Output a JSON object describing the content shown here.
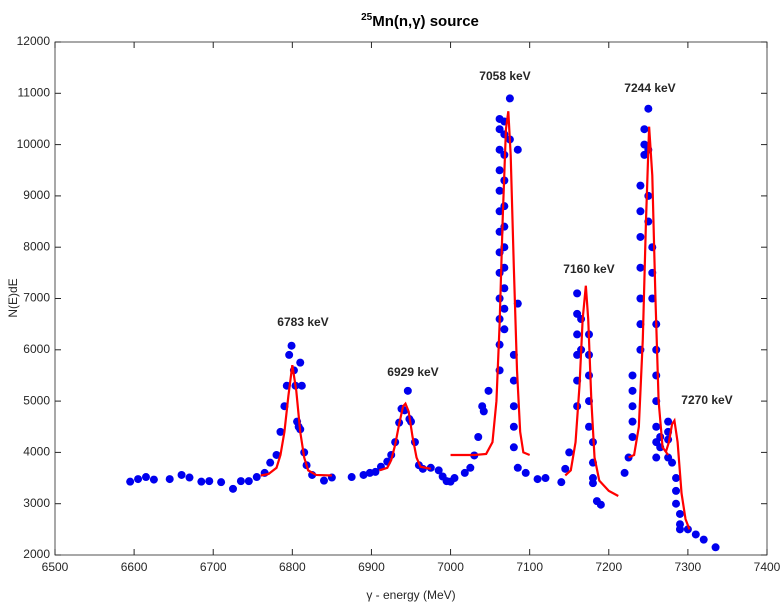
{
  "chart_data": {
    "type": "scatter",
    "title_superscript": "25",
    "title": "Mn(n,γ) source",
    "xlabel": "γ - energy (MeV)",
    "ylabel": "N(E)dE",
    "xlim": [
      6500,
      7400
    ],
    "xticks": [
      6500,
      6600,
      6700,
      6800,
      6900,
      7000,
      7100,
      7200,
      7300,
      7400
    ],
    "ylim": [
      2000,
      12000
    ],
    "yticks": [
      2000,
      3000,
      4000,
      5000,
      6000,
      7000,
      8000,
      9000,
      10000,
      11000,
      12000
    ],
    "grid": false,
    "annotations": [
      "6783 keV",
      "6929 keV",
      "7058 keV",
      "7160 keV",
      "7244 keV",
      "7270 keV"
    ],
    "annotation_color": "#8b3a8f",
    "series": [
      {
        "mode": "markers",
        "color": "#0000ee",
        "x": [
          6595,
          6605,
          6615,
          6625,
          6645,
          6660,
          6670,
          6685,
          6695,
          6710,
          6725,
          6735,
          6745,
          6755,
          6765,
          6772,
          6780,
          6785,
          6790,
          6793,
          6796,
          6799,
          6802,
          6804,
          6806,
          6808,
          6810,
          6810,
          6812,
          6815,
          6818,
          6825,
          6840,
          6850,
          6875,
          6890,
          6898,
          6905,
          6912,
          6920,
          6925,
          6930,
          6935,
          6938,
          6942,
          6946,
          6948,
          6950,
          6955,
          6960,
          6965,
          6975,
          6985,
          6990,
          6995,
          7000,
          7005,
          7018,
          7025,
          7030,
          7035,
          7040,
          7042,
          7048,
          7062,
          7062,
          7062,
          7062,
          7062,
          7062,
          7062,
          7062,
          7062,
          7062,
          7062,
          7062,
          7062,
          7068,
          7068,
          7068,
          7068,
          7068,
          7068,
          7068,
          7068,
          7068,
          7068,
          7068,
          7075,
          7075,
          7080,
          7080,
          7080,
          7080,
          7080,
          7085,
          7085,
          7085,
          7095,
          7110,
          7120,
          7140,
          7145,
          7150,
          7160,
          7160,
          7160,
          7160,
          7160,
          7160,
          7165,
          7165,
          7175,
          7175,
          7175,
          7175,
          7175,
          7180,
          7180,
          7180,
          7180,
          7185,
          7190,
          7220,
          7225,
          7230,
          7230,
          7230,
          7230,
          7230,
          7240,
          7240,
          7240,
          7240,
          7240,
          7240,
          7240,
          7245,
          7245,
          7245,
          7250,
          7250,
          7250,
          7250,
          7255,
          7255,
          7255,
          7260,
          7260,
          7260,
          7260,
          7260,
          7260,
          7260,
          7265,
          7265,
          7275,
          7275,
          7275,
          7275,
          7280,
          7285,
          7285,
          7285,
          7290,
          7290,
          7290,
          7300,
          7310,
          7320,
          7335
        ],
        "values": [
          3430,
          3480,
          3520,
          3470,
          3480,
          3560,
          3510,
          3430,
          3440,
          3420,
          3290,
          3440,
          3440,
          3520,
          3600,
          3800,
          3950,
          4400,
          4900,
          5300,
          5900,
          6080,
          5600,
          5300,
          4600,
          4500,
          4450,
          5750,
          5300,
          4000,
          3750,
          3560,
          3450,
          3510,
          3520,
          3560,
          3600,
          3620,
          3720,
          3820,
          3950,
          4200,
          4580,
          4850,
          4820,
          5200,
          4650,
          4600,
          4200,
          3750,
          3680,
          3700,
          3650,
          3530,
          3440,
          3430,
          3500,
          3600,
          3700,
          3940,
          4300,
          4900,
          4800,
          5200,
          5600,
          6100,
          6600,
          7000,
          7500,
          7900,
          8300,
          8700,
          9100,
          9500,
          9900,
          10300,
          10500,
          10450,
          10200,
          9800,
          9300,
          8800,
          8400,
          8000,
          7600,
          7200,
          6800,
          6400,
          10900,
          10100,
          5900,
          5400,
          4900,
          4500,
          4100,
          6900,
          9900,
          3700,
          3600,
          3480,
          3500,
          3420,
          3680,
          4000,
          4900,
          5400,
          5900,
          6300,
          6700,
          7100,
          6000,
          6600,
          6300,
          5900,
          5500,
          5000,
          4500,
          4200,
          3800,
          3500,
          3400,
          3050,
          2980,
          3600,
          3900,
          4300,
          4600,
          4900,
          5200,
          5500,
          6000,
          6500,
          7000,
          7600,
          8200,
          8700,
          9200,
          9800,
          10300,
          10000,
          10700,
          9900,
          9000,
          8500,
          8000,
          7500,
          7000,
          6500,
          6000,
          5500,
          5000,
          4500,
          4200,
          3900,
          4300,
          4100,
          4400,
          4600,
          4250,
          3900,
          3800,
          3500,
          3250,
          3000,
          2800,
          2600,
          2500,
          2500,
          2400,
          2300,
          2150
        ]
      },
      {
        "mode": "line",
        "color": "#ff0000",
        "x": [
          6760,
          6770,
          6780,
          6785,
          6790,
          6795,
          6800,
          6805,
          6810,
          6815,
          6820,
          6830,
          6850,
          null,
          6910,
          6920,
          6925,
          6930,
          6935,
          6940,
          6943,
          6947,
          6952,
          6957,
          6962,
          6975,
          null,
          7000,
          7030,
          7045,
          7053,
          7058,
          7062,
          7066,
          7070,
          7073,
          7076,
          7080,
          7084,
          7088,
          7092,
          7100,
          null,
          7145,
          7152,
          7158,
          7163,
          7167,
          7171,
          7174,
          7178,
          7182,
          7188,
          7200,
          7212,
          null,
          7225,
          7232,
          7238,
          7243,
          7247,
          7251,
          7255,
          7259,
          7263,
          7268,
          7275,
          null,
          7272,
          7276,
          7280,
          7283,
          7287,
          7292,
          7297,
          7302
        ],
        "values": [
          3550,
          3580,
          3700,
          3950,
          4400,
          5100,
          5700,
          5200,
          4400,
          3900,
          3650,
          3560,
          3550,
          null,
          3650,
          3700,
          3850,
          4150,
          4550,
          4900,
          4950,
          4800,
          4300,
          3900,
          3720,
          3680,
          null,
          3950,
          3950,
          3970,
          4200,
          5000,
          6500,
          8600,
          10300,
          10650,
          9800,
          7600,
          5600,
          4400,
          4000,
          3950,
          null,
          3550,
          3650,
          4200,
          5300,
          6600,
          7250,
          6600,
          5000,
          3900,
          3450,
          3250,
          3150,
          null,
          3900,
          3950,
          4500,
          6200,
          8500,
          10350,
          9400,
          7000,
          5000,
          4100,
          3950,
          null,
          4000,
          4200,
          4550,
          4620,
          4200,
          3200,
          2700,
          2500
        ]
      }
    ]
  }
}
